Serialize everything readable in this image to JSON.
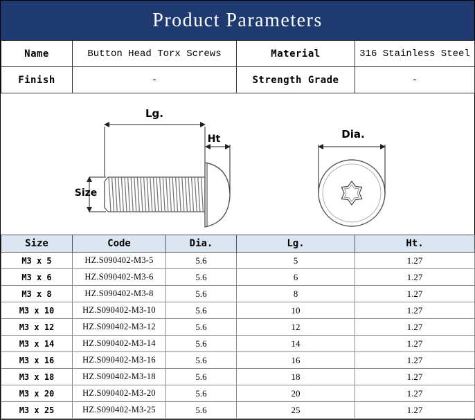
{
  "title": "Product Parameters",
  "params": {
    "name_label": "Name",
    "name_value": "Button Head Torx Screws",
    "material_label": "Material",
    "material_value": "316 Stainless Steel",
    "finish_label": "Finish",
    "finish_value": "-",
    "grade_label": "Strength Grade",
    "grade_value": "-"
  },
  "drawing": {
    "lg_label": "Lg.",
    "ht_label": "Ht",
    "size_label": "Size",
    "dia_label": "Dia."
  },
  "table": {
    "headers": [
      "Size",
      "Code",
      "Dia.",
      "Lg.",
      "Ht."
    ],
    "rows": [
      [
        "M3 x 5",
        "HZ.S090402-M3-5",
        "5.6",
        "5",
        "1.27"
      ],
      [
        "M3 x 6",
        "HZ.S090402-M3-6",
        "5.6",
        "6",
        "1.27"
      ],
      [
        "M3 x 8",
        "HZ.S090402-M3-8",
        "5.6",
        "8",
        "1.27"
      ],
      [
        "M3 x 10",
        "HZ.S090402-M3-10",
        "5.6",
        "10",
        "1.27"
      ],
      [
        "M3 x 12",
        "HZ.S090402-M3-12",
        "5.6",
        "12",
        "1.27"
      ],
      [
        "M3 x 14",
        "HZ.S090402-M3-14",
        "5.6",
        "14",
        "1.27"
      ],
      [
        "M3 x 16",
        "HZ.S090402-M3-16",
        "5.6",
        "16",
        "1.27"
      ],
      [
        "M3 x 18",
        "HZ.S090402-M3-18",
        "5.6",
        "18",
        "1.27"
      ],
      [
        "M3 x 20",
        "HZ.S090402-M3-20",
        "5.6",
        "20",
        "1.27"
      ],
      [
        "M3 x 25",
        "HZ.S090402-M3-25",
        "5.6",
        "25",
        "1.27"
      ]
    ]
  },
  "colors": {
    "title_bg": "#1f3a70",
    "header_bg": "#dbe5f1"
  }
}
